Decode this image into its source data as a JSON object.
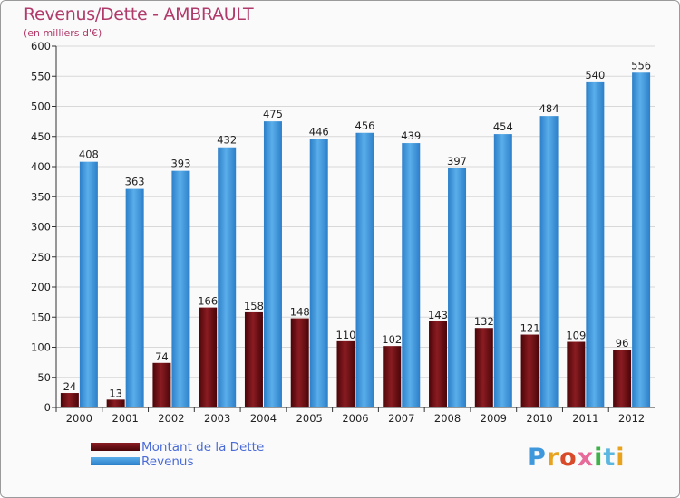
{
  "title": "Revenus/Dette - AMBRAULT",
  "subtitle": "(en milliers d'€)",
  "logo_text": "Proxiti",
  "colors": {
    "dette": "#6e0a0e",
    "revenus": "#3f97dc",
    "title": "#b03a6a",
    "legend_text": "#4b6cd8",
    "grid": "#d8d8d8"
  },
  "legend": [
    {
      "label": "Montant de la Dette",
      "color": "#6e0a0e"
    },
    {
      "label": "Revenus",
      "color": "#3f97dc"
    }
  ],
  "chart_data": {
    "type": "bar",
    "title": "Revenus/Dette - AMBRAULT",
    "subtitle": "(en milliers d'€)",
    "categories": [
      "2000",
      "2001",
      "2002",
      "2003",
      "2004",
      "2005",
      "2006",
      "2007",
      "2008",
      "2009",
      "2010",
      "2011",
      "2012"
    ],
    "series": [
      {
        "name": "Montant de la Dette",
        "values": [
          24,
          13,
          74,
          166,
          158,
          148,
          110,
          102,
          143,
          132,
          121,
          109,
          96
        ]
      },
      {
        "name": "Revenus",
        "values": [
          408,
          363,
          393,
          432,
          475,
          446,
          456,
          439,
          397,
          454,
          484,
          540,
          556
        ]
      }
    ],
    "ylim": [
      0,
      600
    ],
    "yticks": [
      0,
      50,
      100,
      150,
      200,
      250,
      300,
      350,
      400,
      450,
      500,
      550,
      600
    ],
    "grid": true,
    "legend_position": "bottom-left"
  }
}
